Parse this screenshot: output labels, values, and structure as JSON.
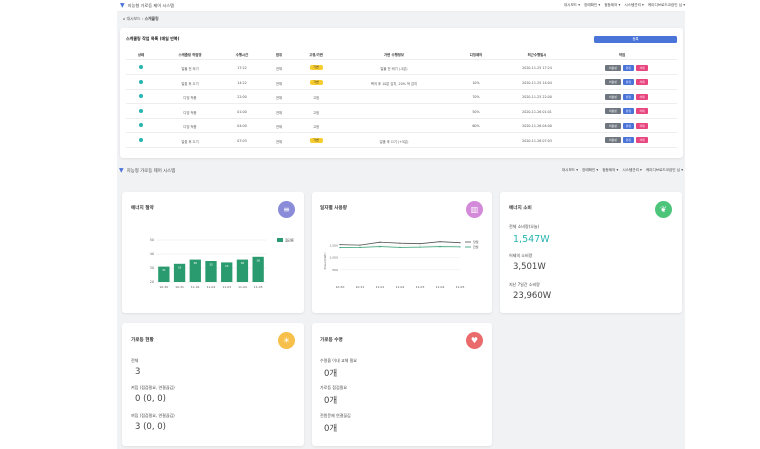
{
  "navbar": {
    "title": "지능형 가로등 제어 시스템",
    "links": [
      "대시보드 ▾",
      "장애확인 ▾",
      "점등제어 ▾",
      "시스템관리 ▾",
      "케이디브로드코캄인 님 ▾"
    ]
  },
  "breadcrumb": {
    "home": "대시보드",
    "current": "스케줄링"
  },
  "schedule": {
    "title": "스케줄링 작업 목록 (매일 반복)",
    "add_label": "등록",
    "columns": [
      "상태",
      "스케줄링 작업명",
      "수행시간",
      "범위",
      "고정/가변",
      "가변 수행정보",
      "디밍제어",
      "최근수행일시",
      "작업"
    ],
    "rows": [
      {
        "name": "일몰 전 켜기",
        "time": "17:22",
        "scope": "전체",
        "mode": "가변",
        "var": "일몰 전 켜기 (-5분)",
        "dim": "",
        "last": "2020-11-25 17:24"
      },
      {
        "name": "일출 후 끄기",
        "time": "14:22",
        "scope": "전체",
        "mode": "가변",
        "var": "복의 후 10분 감지, 20% 적 감지",
        "dim": "10%",
        "last": "2020-11-25 14:04"
      },
      {
        "name": "디밍 적용",
        "time": "22:00",
        "scope": "전체",
        "mode": "고정",
        "var": "",
        "dim": "70%",
        "last": "2020-11-25 22:00"
      },
      {
        "name": "디밍 적용",
        "time": "01:00",
        "scope": "전체",
        "mode": "고정",
        "var": "",
        "dim": "50%",
        "last": "2020-11-26 01:01"
      },
      {
        "name": "디밍 적용",
        "time": "04:00",
        "scope": "전체",
        "mode": "고정",
        "var": "",
        "dim": "60%",
        "last": "2020-11-26 04:00"
      },
      {
        "name": "일출 후 끄기",
        "time": "07:03",
        "scope": "전체",
        "mode": "가변",
        "var": "일출 후 끄기 (+5분)",
        "dim": "",
        "last": "2020-11-26 07:03"
      }
    ],
    "actions": {
      "disable": "비활성",
      "edit": "편집",
      "delete": "삭제"
    }
  },
  "section": {
    "title": "지능형 가로등 제어 시스템"
  },
  "widgets": {
    "saving": {
      "title": "에너지 절약",
      "legend": "절감률"
    },
    "usage": {
      "title": "일자별 사용량",
      "ylabel": "Power(kWh)",
      "legend": [
        "당월",
        "전월"
      ]
    },
    "consumption": {
      "title": "에너지 소비",
      "items": [
        {
          "label": "전체 소비량(오늘)",
          "value": "1,547W"
        },
        {
          "label": "어제의 소비량",
          "value": "3,501W"
        },
        {
          "label": "지난 7일간 소비량",
          "value": "23,960W"
        }
      ]
    },
    "status": {
      "title": "가로등 현황",
      "items": [
        {
          "label": "전체",
          "value": "3"
        },
        {
          "label": "켜짐 (점검필요, 연결끊김)",
          "value": "0 (0, 0)"
        },
        {
          "label": "꺼짐 (점검필요, 연결끊김)",
          "value": "3 (0, 0)"
        }
      ]
    },
    "repair": {
      "title": "가로등 수명",
      "items": [
        {
          "label": "수명을 이내 교체 필요",
          "value": "0개"
        },
        {
          "label": "가로등 점검필요",
          "value": "0개"
        },
        {
          "label": "전원문제 연결끊김",
          "value": "0개"
        }
      ]
    }
  },
  "chart_data": [
    {
      "type": "bar",
      "categories": [
        "10-30",
        "10-31",
        "11-01",
        "11-02",
        "11-03",
        "11-04",
        "11-05"
      ],
      "values": [
        31,
        33,
        36,
        35,
        34,
        36,
        38
      ],
      "ylim": [
        20,
        50
      ],
      "yticks": [
        20,
        30,
        40,
        50
      ]
    },
    {
      "type": "line",
      "x": [
        "10-30",
        "10-31",
        "11-01",
        "11-02",
        "11-03",
        "11-04",
        "11-05"
      ],
      "series": [
        {
          "name": "당월",
          "values": [
            1.52,
            1.5,
            1.62,
            1.58,
            1.56,
            1.64,
            1.6
          ]
        },
        {
          "name": "전월",
          "values": [
            1.4,
            1.41,
            1.44,
            1.41,
            1.42,
            1.44,
            1.43
          ]
        }
      ],
      "yticks": [
        "1,500",
        "1,000",
        "500"
      ]
    }
  ],
  "colors": {
    "accent": "#4b74d9",
    "teal": "#26b5b0",
    "yellow": "#f8cd2f",
    "bar": "#2a9b6e",
    "pink": "#e8457f",
    "gray": "#6f7680"
  }
}
